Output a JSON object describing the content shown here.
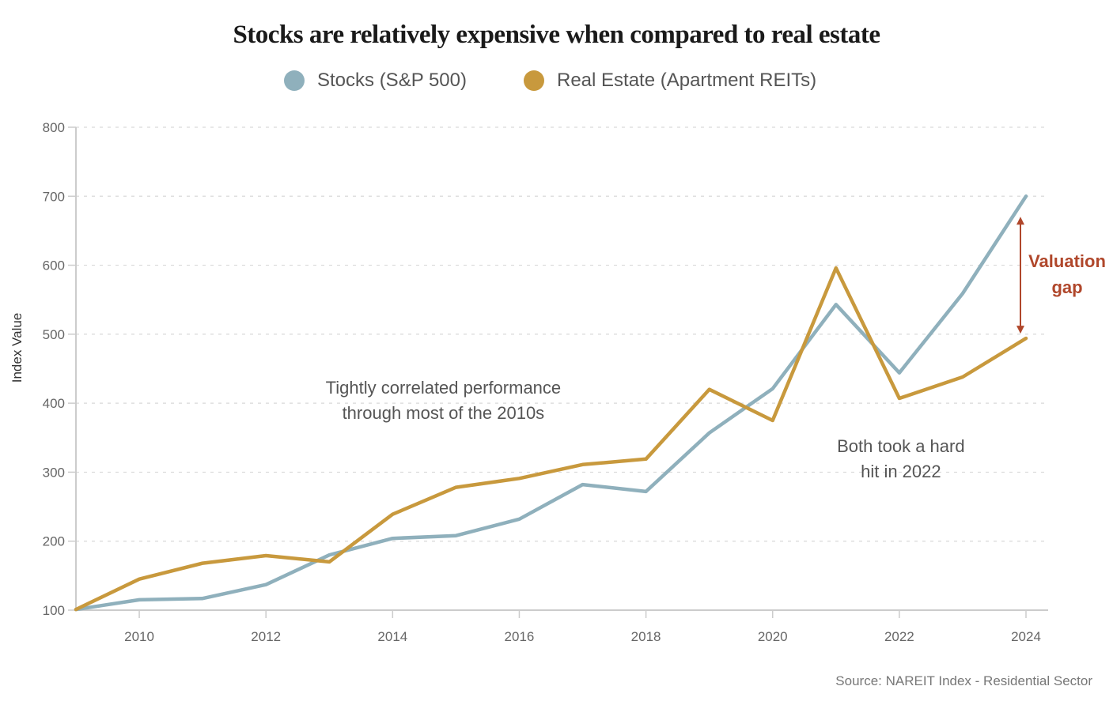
{
  "chart_data": {
    "type": "line",
    "title": "Stocks are relatively expensive when compared to real estate",
    "xlabel": "",
    "ylabel": "Index Value",
    "ylim": [
      100,
      800
    ],
    "xlim": [
      2009,
      2024
    ],
    "yticks": [
      100,
      200,
      300,
      400,
      500,
      600,
      700,
      800
    ],
    "xticks": [
      2010,
      2012,
      2014,
      2016,
      2018,
      2020,
      2022,
      2024
    ],
    "grid": "horizontal dashed",
    "legend": "top-center",
    "x": [
      2009,
      2010,
      2011,
      2012,
      2013,
      2014,
      2015,
      2016,
      2017,
      2018,
      2019,
      2020,
      2021,
      2022,
      2023,
      2024
    ],
    "series": [
      {
        "name": "Stocks (S&P 500)",
        "color": "#8fb0bc",
        "values": [
          101,
          115,
          117,
          137,
          180,
          204,
          208,
          232,
          282,
          272,
          357,
          421,
          543,
          444,
          559,
          700
        ]
      },
      {
        "name": "Real Estate (Apartment REITs)",
        "color": "#c8993d",
        "values": [
          101,
          145,
          168,
          179,
          170,
          239,
          278,
          291,
          311,
          319,
          420,
          375,
          596,
          407,
          438,
          494
        ]
      }
    ],
    "annotations": [
      {
        "id": "corr",
        "lines": [
          "Tightly correlated performance",
          "through most of the 2010s"
        ],
        "x": 2014.8,
        "y": 400
      },
      {
        "id": "hit",
        "lines": [
          "Both took a hard",
          "hit in 2022"
        ],
        "x": 2022,
        "y": 330
      },
      {
        "id": "gap",
        "lines": [
          "Valuation",
          "gap"
        ],
        "color": "#b0472b",
        "from": 494,
        "to": 700,
        "x": 2023.9
      }
    ],
    "source": "Source: NAREIT Index - Residential Sector"
  }
}
